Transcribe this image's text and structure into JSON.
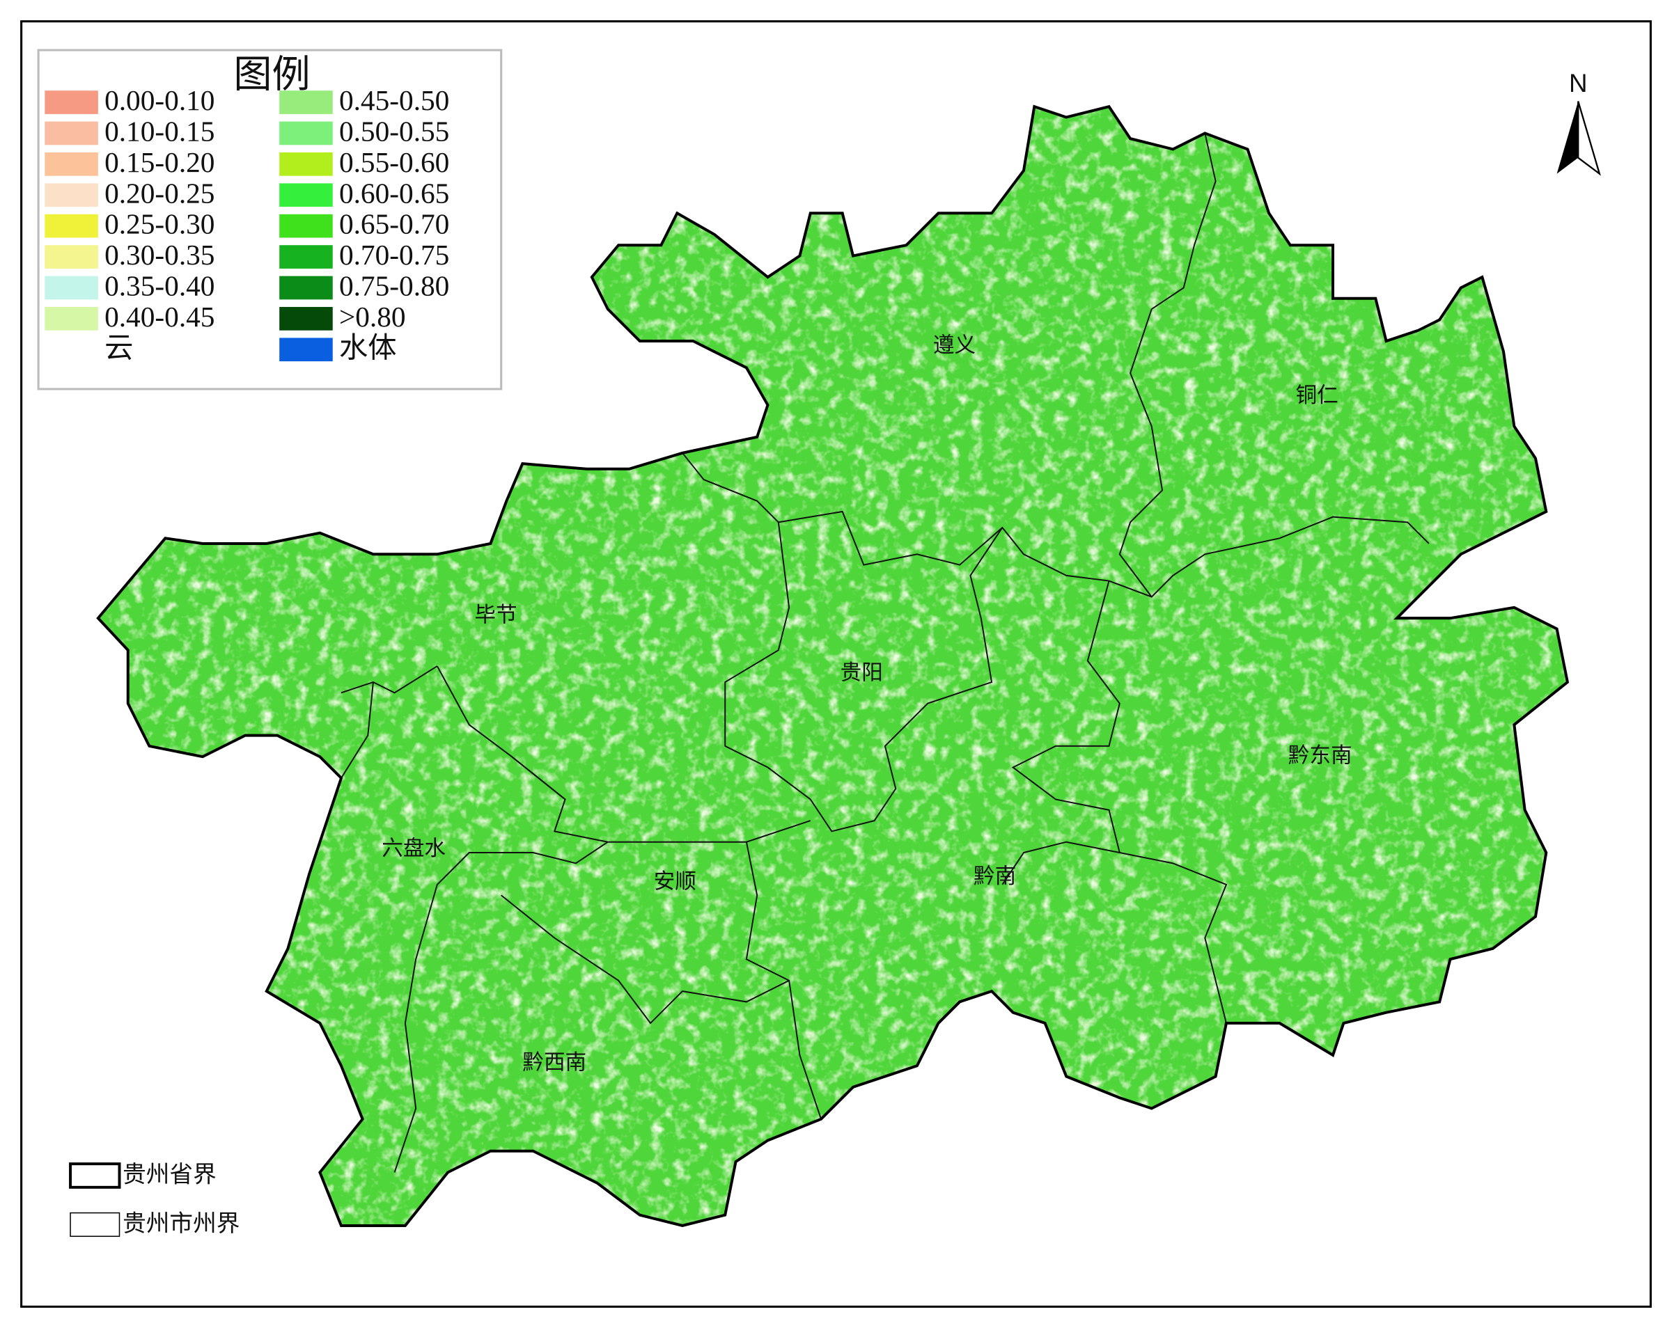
{
  "legend": {
    "title": "图例",
    "items": [
      {
        "label": "0.00-0.10",
        "color": "#f79a83"
      },
      {
        "label": "0.10-0.15",
        "color": "#fbbda1"
      },
      {
        "label": "0.15-0.20",
        "color": "#fcc39a"
      },
      {
        "label": "0.20-0.25",
        "color": "#fde0c8"
      },
      {
        "label": "0.25-0.30",
        "color": "#f0f23a"
      },
      {
        "label": "0.30-0.35",
        "color": "#f4f58e"
      },
      {
        "label": "0.35-0.40",
        "color": "#c4f5ea"
      },
      {
        "label": "0.40-0.45",
        "color": "#d6f7a6"
      },
      {
        "label": "云",
        "color": "#ffffff"
      },
      {
        "label": "0.45-0.50",
        "color": "#98ec7c"
      },
      {
        "label": "0.50-0.55",
        "color": "#7df07c"
      },
      {
        "label": "0.55-0.60",
        "color": "#b2ee1c"
      },
      {
        "label": "0.60-0.65",
        "color": "#34f03c"
      },
      {
        "label": "0.65-0.70",
        "color": "#3ee11c"
      },
      {
        "label": "0.70-0.75",
        "color": "#17b220"
      },
      {
        "label": "0.75-0.80",
        "color": "#0b8c18"
      },
      {
        "label": ">0.80",
        "color": "#064a0a"
      },
      {
        "label": "水体",
        "color": "#0a5fe0"
      }
    ]
  },
  "regions": [
    "遵义",
    "铜仁",
    "毕节",
    "贵阳",
    "黔东南",
    "六盘水",
    "安顺",
    "黔南",
    "黔西南"
  ],
  "north": "N",
  "boundaries": [
    "贵州省界",
    "贵州市州界"
  ]
}
